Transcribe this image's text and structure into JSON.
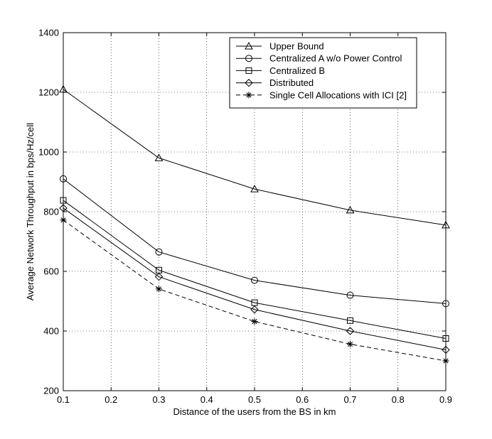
{
  "chart_data": {
    "type": "line",
    "title": "",
    "xlabel": "Distance of the users from the BS in km",
    "ylabel": "Average Network Throughput in bps/Hz/cell",
    "xlim": [
      0.1,
      0.9
    ],
    "ylim": [
      200,
      1400
    ],
    "xticks": [
      0.1,
      0.2,
      0.3,
      0.4,
      0.5,
      0.6,
      0.7,
      0.8,
      0.9
    ],
    "yticks": [
      200,
      400,
      600,
      800,
      1000,
      1200,
      1400
    ],
    "grid": true,
    "legend_position": "top-right",
    "x": [
      0.1,
      0.3,
      0.5,
      0.7,
      0.9
    ],
    "series": [
      {
        "name": "Upper Bound",
        "marker": "triangle",
        "dash": "solid",
        "values": [
          1210,
          980,
          876,
          805,
          755
        ]
      },
      {
        "name": "Centralized A w/o Power Control",
        "marker": "circle",
        "dash": "solid",
        "values": [
          910,
          665,
          570,
          520,
          492
        ]
      },
      {
        "name": "Centralized B",
        "marker": "square",
        "dash": "solid",
        "values": [
          838,
          604,
          495,
          435,
          375
        ]
      },
      {
        "name": "Distributed",
        "marker": "diamond",
        "dash": "solid",
        "values": [
          812,
          582,
          472,
          400,
          337
        ]
      },
      {
        "name": "Single Cell Allocations with ICI [2]",
        "marker": "asterisk",
        "dash": "dashed",
        "values": [
          772,
          541,
          432,
          356,
          300
        ]
      }
    ]
  }
}
